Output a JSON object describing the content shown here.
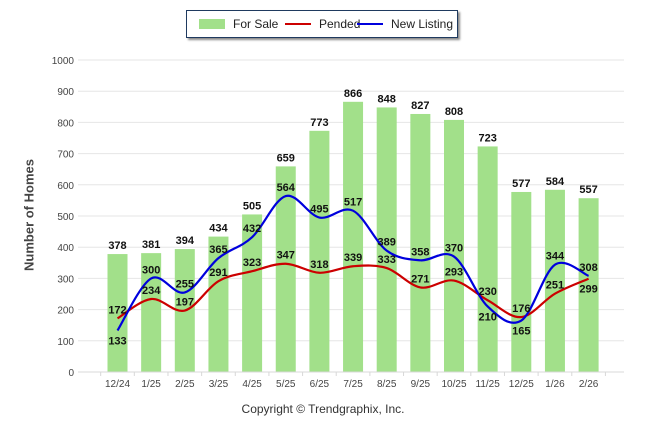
{
  "legend": {
    "items": [
      {
        "label": "For Sale",
        "kind": "bar",
        "color": "#a2e08a"
      },
      {
        "label": "Pended",
        "kind": "line",
        "color": "#cc0000"
      },
      {
        "label": "New Listing",
        "kind": "line",
        "color": "#0000dd"
      }
    ]
  },
  "footer": {
    "copyright": "Copyright © Trendgraphix, Inc."
  },
  "chart_data": {
    "type": "bar",
    "title": "",
    "xlabel": "",
    "ylabel": "Number of Homes",
    "ylim": [
      0,
      1000
    ],
    "yticks": [
      0,
      100,
      200,
      300,
      400,
      500,
      600,
      700,
      800,
      900,
      1000
    ],
    "grid": true,
    "legend_position": "top-center",
    "categories": [
      "12/24",
      "1/25",
      "2/25",
      "3/25",
      "4/25",
      "5/25",
      "6/25",
      "7/25",
      "8/25",
      "9/25",
      "10/25",
      "11/25",
      "12/25",
      "1/26",
      "2/26"
    ],
    "series": [
      {
        "name": "For Sale",
        "type": "bar",
        "color": "#a2e08a",
        "values": [
          378,
          381,
          394,
          434,
          505,
          659,
          773,
          866,
          848,
          827,
          808,
          723,
          577,
          584,
          557
        ]
      },
      {
        "name": "Pended",
        "type": "line",
        "color": "#cc0000",
        "values": [
          172,
          234,
          197,
          291,
          323,
          347,
          318,
          339,
          333,
          271,
          293,
          230,
          176,
          251,
          299
        ]
      },
      {
        "name": "New Listing",
        "type": "line",
        "color": "#0000dd",
        "values": [
          133,
          300,
          255,
          365,
          432,
          564,
          495,
          517,
          389,
          358,
          370,
          210,
          165,
          344,
          308
        ]
      }
    ]
  }
}
